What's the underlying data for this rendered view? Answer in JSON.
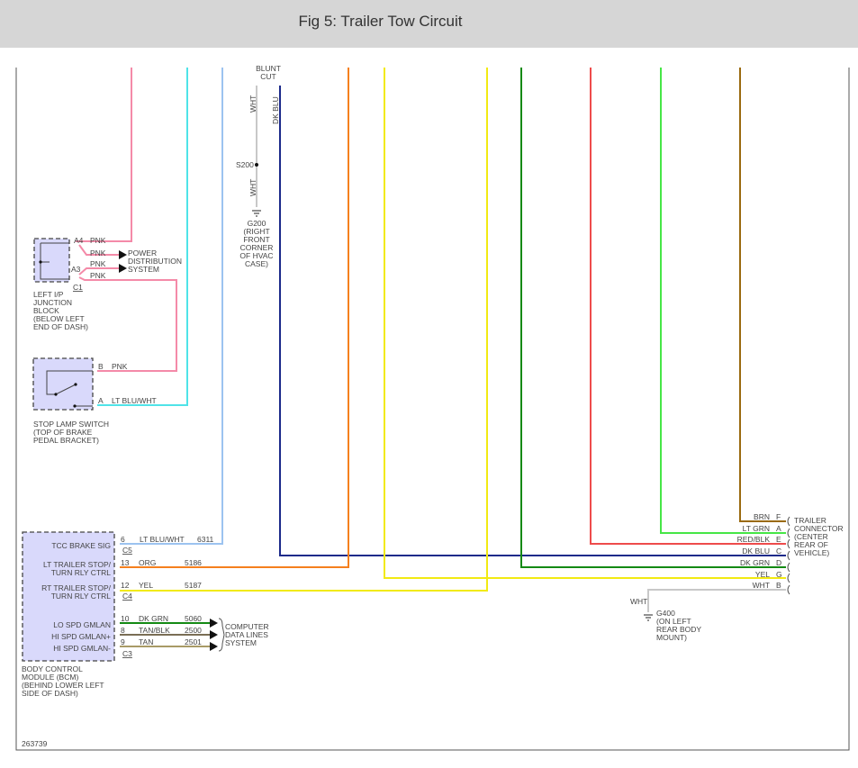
{
  "header": {
    "title": "Fig 5: Trailer Tow Circuit"
  },
  "figure_id": "263739",
  "colors": {
    "pnk": "#f48aa8",
    "cyan": "#4fe3e8",
    "ltblu": "#9cc3f0",
    "wht": "#c8c8c8",
    "dkblu": "#1c2a8a",
    "org": "#f5801e",
    "yel": "#f2ea12",
    "dkgrn": "#148a14",
    "red": "#ee4b4b",
    "ltgrn": "#46e646",
    "brn": "#9a6a10",
    "tan": "#a89a66",
    "tanblk": "#7a6e55"
  },
  "junction_block": {
    "pins": [
      "A4",
      "A3"
    ],
    "connector": "C1",
    "wires": [
      "PNK",
      "PNK",
      "PNK",
      "PNK"
    ],
    "label": [
      "LEFT I/P",
      "JUNCTION",
      "BLOCK",
      "(BELOW LEFT",
      "END OF DASH)"
    ]
  },
  "power_distribution": [
    "POWER",
    "DISTRIBUTION",
    "SYSTEM"
  ],
  "stop_lamp_switch": {
    "pins": [
      "B",
      "A"
    ],
    "wires": [
      "PNK",
      "LT BLU/WHT"
    ],
    "label": [
      "STOP LAMP SWITCH",
      "(TOP OF BRAKE",
      "PEDAL BRACKET)"
    ]
  },
  "splice": {
    "blunt_cut": [
      "BLUNT",
      "CUT"
    ],
    "wht": "WHT",
    "dkblu": "DK BLU",
    "s200": "S200",
    "g200": [
      "G200",
      "(RIGHT",
      "FRONT",
      "CORNER",
      "OF HVAC",
      "CASE)"
    ]
  },
  "bcm": {
    "label": [
      "BODY CONTROL",
      "MODULE (BCM)",
      "(BEHIND LOWER LEFT",
      "SIDE OF DASH)"
    ],
    "circuits": [
      {
        "name": "TCC BRAKE SIG",
        "pin": "6",
        "color": "LT BLU/WHT",
        "circuit": "6311"
      },
      {
        "name1": "LT TRAILER STOP/",
        "name2": "TURN RLY CTRL",
        "pin": "13",
        "color": "ORG",
        "circuit": "5186"
      },
      {
        "name1": "RT TRAILER STOP/",
        "name2": "TURN RLY CTRL",
        "pin": "12",
        "color": "YEL",
        "circuit": "5187"
      },
      {
        "name": "LO SPD GMLAN",
        "pin": "10",
        "color": "DK GRN",
        "circuit": "5060"
      },
      {
        "name": "HI SPD GMLAN+",
        "pin": "8",
        "color": "TAN/BLK",
        "circuit": "2500"
      },
      {
        "name": "HI SPD GMLAN-",
        "pin": "9",
        "color": "TAN",
        "circuit": "2501"
      }
    ],
    "connectors": [
      "C5",
      "C4",
      "C3"
    ]
  },
  "data_lines": [
    "COMPUTER",
    "DATA LINES",
    "SYSTEM"
  ],
  "trailer_connector": {
    "label": [
      "TRAILER",
      "CONNECTOR",
      "(CENTER",
      "REAR OF",
      "VEHICLE)"
    ],
    "pins": [
      {
        "color": "BRN",
        "pin": "F"
      },
      {
        "color": "LT GRN",
        "pin": "A"
      },
      {
        "color": "RED/BLK",
        "pin": "E"
      },
      {
        "color": "DK BLU",
        "pin": "C"
      },
      {
        "color": "DK GRN",
        "pin": "D"
      },
      {
        "color": "YEL",
        "pin": "G"
      },
      {
        "color": "WHT",
        "pin": "B"
      }
    ]
  },
  "g400": {
    "wire": "WHT",
    "label": [
      "G400",
      "(ON LEFT",
      "REAR BODY",
      "MOUNT)"
    ]
  }
}
